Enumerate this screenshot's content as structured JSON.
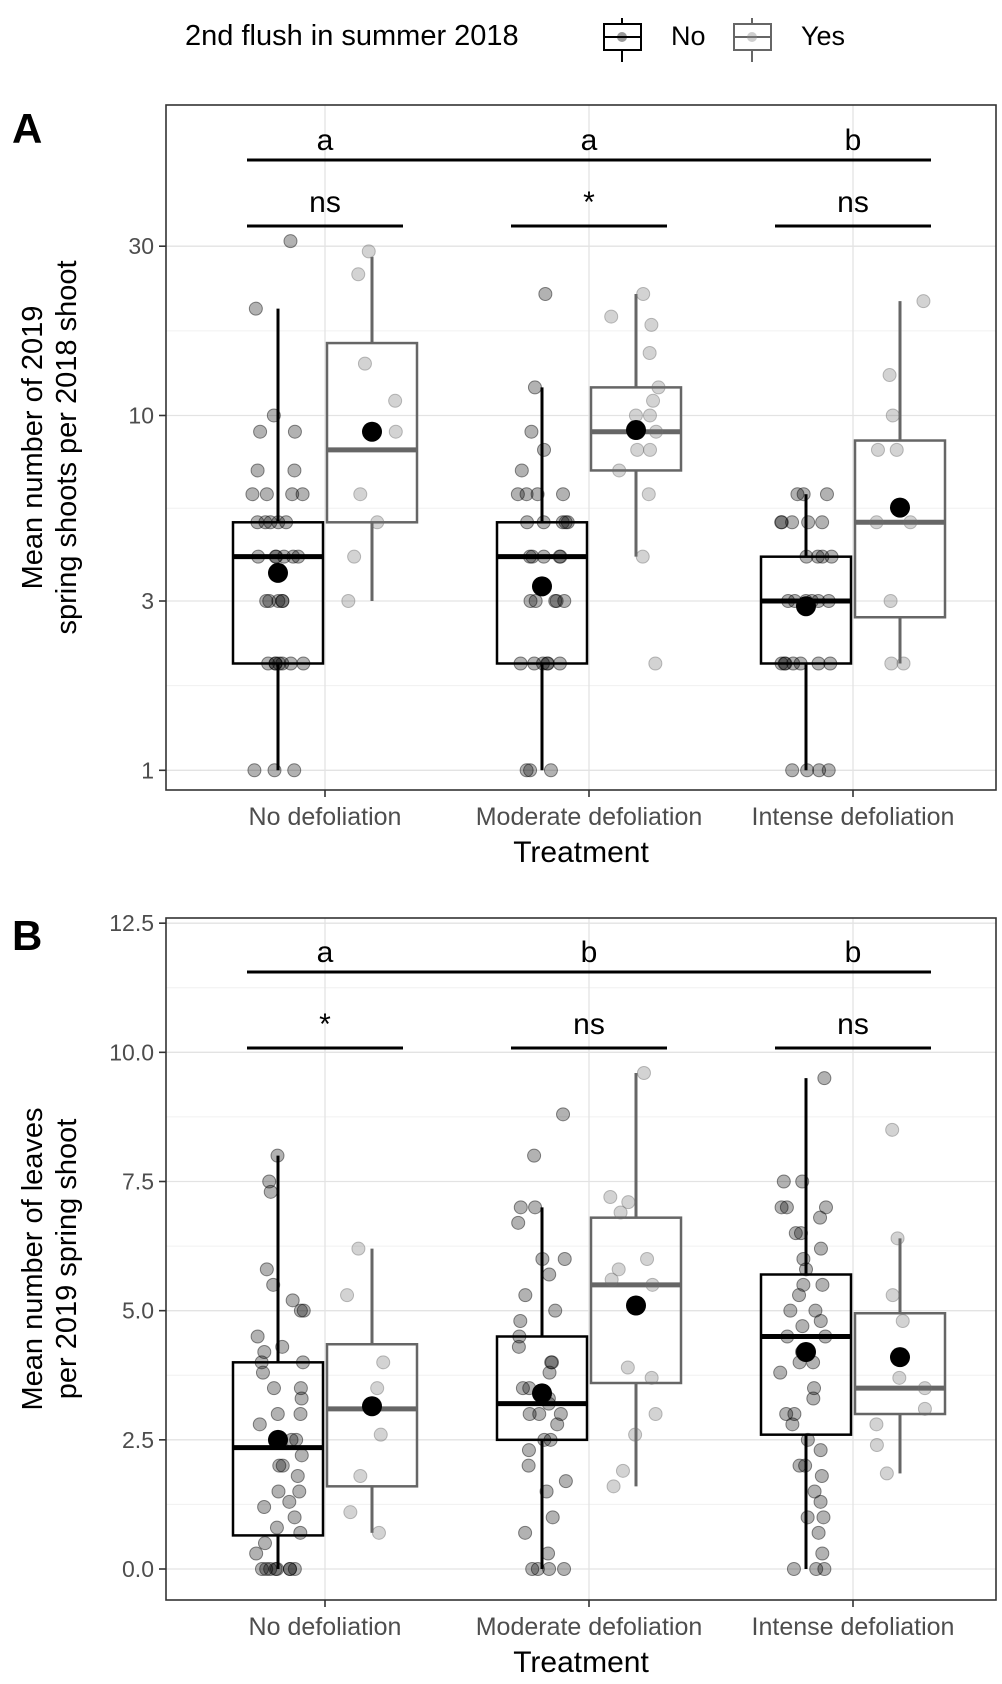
{
  "legend": {
    "title": "2nd flush in summer 2018",
    "items": [
      {
        "label": "No",
        "color": "#000000"
      },
      {
        "label": "Yes",
        "color": "#666666"
      }
    ]
  },
  "chart_data": [
    {
      "panel_label": "A",
      "type": "box",
      "y_scale": "log",
      "ylim": [
        0.88,
        75
      ],
      "yticks": [
        1,
        3,
        10,
        30
      ],
      "ytick_labels": [
        "1",
        "3",
        "10",
        "30"
      ],
      "ylabel_lines": [
        "Mean number of 2019",
        "spring shoots per 2018 shoot"
      ],
      "xlabel": "Treatment",
      "categories": [
        "No defoliation",
        "Moderate defoliation",
        "Intense defoliation"
      ],
      "group_letters": [
        "a",
        "a",
        "b"
      ],
      "pair_significance": [
        "ns",
        "*",
        "ns"
      ],
      "series": [
        {
          "name": "No",
          "boxes": [
            {
              "whisker_low": 1,
              "q1": 2,
              "median": 4,
              "q3": 5,
              "whisker_high": 20,
              "mean": 3.6
            },
            {
              "whisker_low": 1,
              "q1": 2,
              "median": 4,
              "q3": 5,
              "whisker_high": 12,
              "mean": 3.3
            },
            {
              "whisker_low": 1,
              "q1": 2,
              "median": 3,
              "q3": 4,
              "whisker_high": 6,
              "mean": 2.9
            }
          ],
          "points": [
            [
              31,
              20,
              10,
              9,
              9,
              7,
              7,
              6,
              6,
              6,
              6,
              5,
              5,
              5,
              5,
              5,
              4,
              4,
              4,
              4,
              4,
              4,
              3,
              3,
              3,
              3,
              3,
              2,
              2,
              2,
              2,
              2,
              2,
              2,
              1,
              1,
              1
            ],
            [
              22,
              12,
              9,
              8,
              7,
              6,
              6,
              6,
              6,
              5,
              5,
              5,
              5,
              5,
              4,
              4,
              4,
              4,
              4,
              3,
              3,
              3,
              3,
              3,
              2,
              2,
              2,
              2,
              2,
              2,
              1,
              1,
              1
            ],
            [
              6,
              6,
              6,
              5,
              5,
              5,
              5,
              5,
              4,
              4,
              4,
              4,
              3,
              3,
              3,
              3,
              3,
              3,
              2,
              2,
              2,
              2,
              2,
              2,
              2,
              1,
              1,
              1,
              1
            ]
          ]
        },
        {
          "name": "Yes",
          "boxes": [
            {
              "whisker_low": 3,
              "q1": 5,
              "median": 8,
              "q3": 16,
              "whisker_high": 28,
              "mean": 9
            },
            {
              "whisker_low": 4,
              "q1": 7,
              "median": 9,
              "q3": 12,
              "whisker_high": 22,
              "mean": 9.1
            },
            {
              "whisker_low": 2,
              "q1": 2.7,
              "median": 5,
              "q3": 8.5,
              "whisker_high": 21,
              "mean": 5.5
            }
          ],
          "points": [
            [
              29,
              25,
              14,
              11,
              9,
              6,
              5,
              4,
              3
            ],
            [
              22,
              19,
              18,
              15,
              12,
              11,
              10,
              10,
              9,
              9,
              8,
              8,
              7,
              6,
              4,
              2
            ],
            [
              21,
              13,
              10,
              8,
              8,
              5,
              5,
              3,
              2,
              2
            ]
          ]
        }
      ]
    },
    {
      "panel_label": "B",
      "type": "box",
      "y_scale": "linear",
      "ylim": [
        -0.6,
        12.6
      ],
      "yticks": [
        0,
        2.5,
        5,
        7.5,
        10,
        12.5
      ],
      "ytick_labels": [
        "0.0",
        "2.5",
        "5.0",
        "7.5",
        "10.0",
        "12.5"
      ],
      "ylabel_lines": [
        "Mean number of leaves",
        "per 2019 spring shoot"
      ],
      "xlabel": "Treatment",
      "categories": [
        "No defoliation",
        "Moderate defoliation",
        "Intense defoliation"
      ],
      "group_letters": [
        "a",
        "b",
        "b"
      ],
      "pair_significance": [
        "*",
        "ns",
        "ns"
      ],
      "series": [
        {
          "name": "No",
          "boxes": [
            {
              "whisker_low": 0,
              "q1": 0.65,
              "median": 2.35,
              "q3": 4.0,
              "whisker_high": 8.0,
              "mean": 2.5
            },
            {
              "whisker_low": 0,
              "q1": 2.5,
              "median": 3.2,
              "q3": 4.5,
              "whisker_high": 7.0,
              "mean": 3.4
            },
            {
              "whisker_low": 0,
              "q1": 2.6,
              "median": 4.5,
              "q3": 5.7,
              "whisker_high": 9.5,
              "mean": 4.2
            }
          ],
          "points": [
            [
              8.0,
              7.5,
              7.3,
              5.8,
              5.5,
              5.2,
              5.0,
              5.0,
              4.5,
              4.3,
              4.2,
              4.0,
              4.0,
              3.8,
              3.5,
              3.5,
              3.3,
              3.0,
              3.0,
              2.8,
              2.5,
              2.5,
              2.2,
              2.0,
              2.0,
              1.8,
              1.5,
              1.5,
              1.3,
              1.2,
              1.0,
              0.8,
              0.7,
              0.5,
              0.3,
              0,
              0,
              0,
              0,
              0,
              0,
              0,
              0
            ],
            [
              8.8,
              8.0,
              7.0,
              7.0,
              6.7,
              6.0,
              6.0,
              5.7,
              5.3,
              5.0,
              4.8,
              4.5,
              4.3,
              4.0,
              4.0,
              3.8,
              3.5,
              3.5,
              3.3,
              3.2,
              3.0,
              3.0,
              3.0,
              2.8,
              2.5,
              2.5,
              2.3,
              2.0,
              1.7,
              1.5,
              1.0,
              0.7,
              0.3,
              0,
              0,
              0,
              0
            ],
            [
              9.5,
              7.5,
              7.5,
              7.0,
              7.0,
              7.0,
              6.8,
              6.5,
              6.5,
              6.2,
              6.0,
              5.8,
              5.5,
              5.5,
              5.3,
              5.0,
              5.0,
              4.8,
              4.7,
              4.5,
              4.5,
              4.2,
              4.0,
              4.0,
              3.8,
              3.5,
              3.3,
              3.0,
              3.0,
              2.8,
              2.5,
              2.3,
              2.0,
              2.0,
              1.8,
              1.5,
              1.3,
              1.0,
              1.0,
              0.7,
              0.3,
              0,
              0,
              0
            ]
          ]
        },
        {
          "name": "Yes",
          "boxes": [
            {
              "whisker_low": 0.7,
              "q1": 1.6,
              "median": 3.1,
              "q3": 4.35,
              "whisker_high": 6.2,
              "mean": 3.15
            },
            {
              "whisker_low": 1.6,
              "q1": 3.6,
              "median": 5.5,
              "q3": 6.8,
              "whisker_high": 9.6,
              "mean": 5.1
            },
            {
              "whisker_low": 1.85,
              "q1": 3.0,
              "median": 3.5,
              "q3": 4.95,
              "whisker_high": 6.4,
              "mean": 4.1
            }
          ],
          "points": [
            [
              6.2,
              5.3,
              4.0,
              3.5,
              2.6,
              1.8,
              1.1,
              0.7
            ],
            [
              9.6,
              7.2,
              7.1,
              6.9,
              6.0,
              5.8,
              5.6,
              5.5,
              3.9,
              3.7,
              3.0,
              2.6,
              1.9,
              1.6
            ],
            [
              8.5,
              6.4,
              5.3,
              4.8,
              3.7,
              3.5,
              3.1,
              2.8,
              2.4,
              1.85
            ]
          ]
        }
      ]
    }
  ]
}
